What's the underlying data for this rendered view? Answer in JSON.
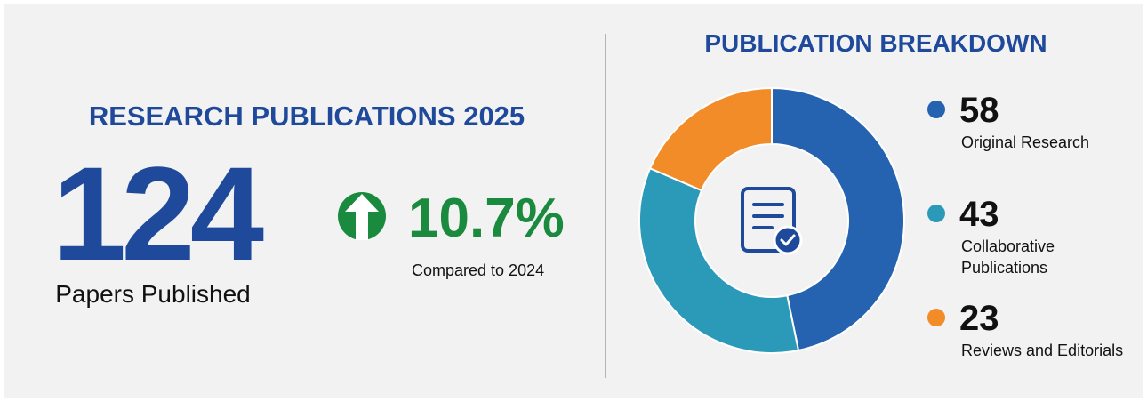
{
  "kpi": {
    "title": "RESEARCH PUBLICATIONS 2025",
    "value": "124",
    "label": "Papers Published",
    "change": "10.7%",
    "change_label": "Compared to 2024"
  },
  "chart_data": {
    "type": "donut",
    "title": "PUBLICATION BREAKDOWN",
    "categories": [
      "Original Research",
      "Collaborative Publications",
      "Reviews and Editorials"
    ],
    "values": [
      58,
      43,
      23
    ],
    "colors": [
      "#2563b0",
      "#2a9ab8",
      "#f28c28"
    ]
  }
}
